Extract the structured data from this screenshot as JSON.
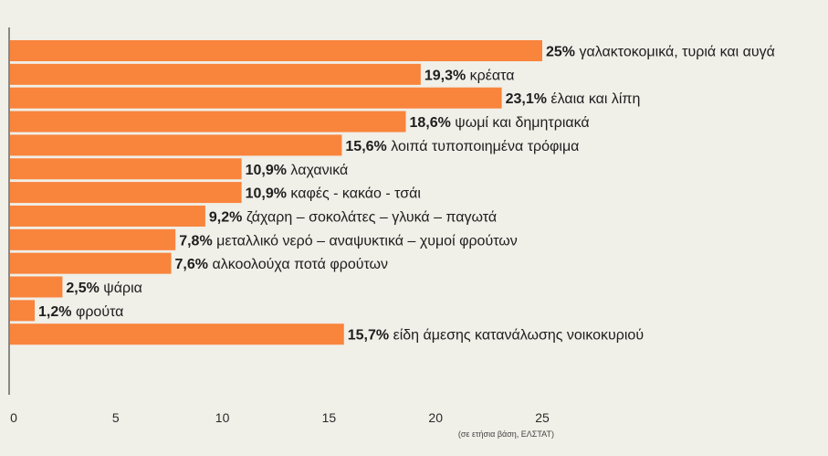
{
  "chart_data": {
    "type": "bar",
    "orientation": "horizontal",
    "categories": [
      "γαλακτοκομικά, τυριά και αυγά",
      "κρέατα",
      "έλαια και λίπη",
      "ψωμί και δημητριακά",
      "λοιπά τυποποιημένα τρόφιμα",
      "λαχανικά",
      "καφές - κακάο - τσάι",
      "ζάχαρη – σοκολάτες – γλυκά – παγωτά",
      "μεταλλικό νερό – αναψυκτικά – χυμοί φρούτων",
      "αλκοολούχα ποτά φρούτων",
      "ψάρια",
      "φρούτα",
      "είδη άμεσης κατανάλωσης νοικοκυριού"
    ],
    "values": [
      25,
      19.3,
      23.1,
      18.6,
      15.6,
      10.9,
      10.9,
      9.2,
      7.8,
      7.6,
      2.5,
      1.2,
      15.7
    ],
    "value_labels": [
      "25%",
      "19,3%",
      "23,1%",
      "18,6%",
      "15,6%",
      "10,9%",
      "10,9%",
      "9,2%",
      "7,8%",
      "7,6%",
      "2,5%",
      "1,2%",
      "15,7%"
    ],
    "xlim": [
      0,
      25
    ],
    "x_ticks": [
      0,
      5,
      10,
      15,
      20,
      25
    ],
    "grid": false,
    "bar_color": "#f9843c",
    "source_note": "(σε ετήσια βάση, ΕΛΣΤΑΤ)"
  }
}
